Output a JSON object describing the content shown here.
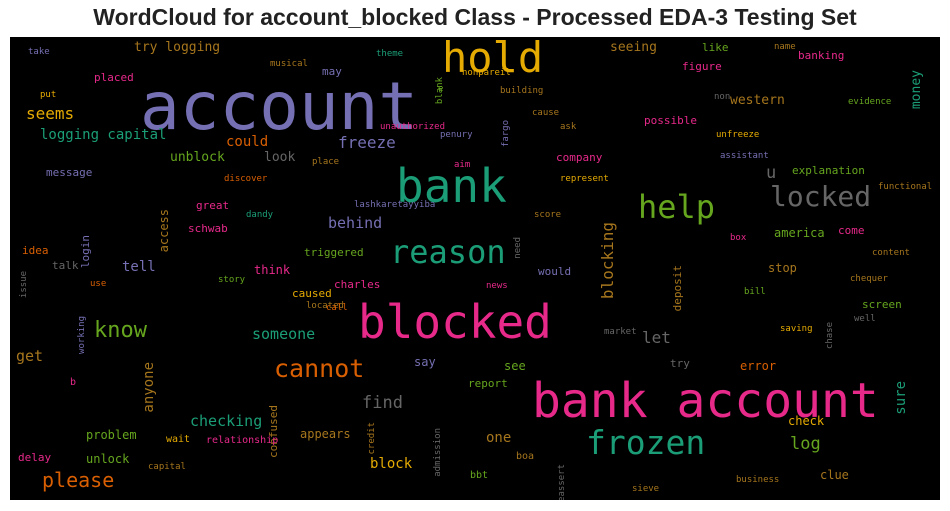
{
  "title": "WordCloud for account_blocked Class - Processed EDA-3 Testing Set",
  "palette": {
    "green": "#1b9e77",
    "orange": "#d95f02",
    "purple": "#7570b3",
    "pink": "#e7298a",
    "lime": "#66a61e",
    "gold": "#e6ab02",
    "brown": "#a6761d",
    "gray": "#666666"
  },
  "words": [
    {
      "text": "account",
      "color": "purple"
    },
    {
      "text": "bank account",
      "color": "pink"
    },
    {
      "text": "blocked",
      "color": "pink"
    },
    {
      "text": "bank",
      "color": "green"
    },
    {
      "text": "hold",
      "color": "gold"
    },
    {
      "text": "reason",
      "color": "green"
    },
    {
      "text": "frozen",
      "color": "green"
    },
    {
      "text": "help",
      "color": "lime"
    },
    {
      "text": "locked",
      "color": "gray"
    },
    {
      "text": "cannot",
      "color": "orange"
    },
    {
      "text": "know",
      "color": "lime"
    },
    {
      "text": "please",
      "color": "orange"
    },
    {
      "text": "freeze",
      "color": "purple"
    },
    {
      "text": "find",
      "color": "gray"
    },
    {
      "text": "checking",
      "color": "green"
    },
    {
      "text": "u",
      "color": "gray"
    },
    {
      "text": "blocking",
      "color": "brown"
    },
    {
      "text": "log",
      "color": "lime"
    },
    {
      "text": "let",
      "color": "gray"
    },
    {
      "text": "behind",
      "color": "purple"
    },
    {
      "text": "someone",
      "color": "green"
    },
    {
      "text": "tell",
      "color": "purple"
    },
    {
      "text": "block",
      "color": "gold"
    },
    {
      "text": "one",
      "color": "brown"
    },
    {
      "text": "anyone",
      "color": "brown"
    },
    {
      "text": "access",
      "color": "brown"
    },
    {
      "text": "seems",
      "color": "gold"
    },
    {
      "text": "logging capital",
      "color": "green"
    },
    {
      "text": "try logging",
      "color": "brown"
    },
    {
      "text": "seeing",
      "color": "brown"
    },
    {
      "text": "western",
      "color": "brown"
    },
    {
      "text": "money",
      "color": "green"
    },
    {
      "text": "could",
      "color": "orange"
    },
    {
      "text": "unblock",
      "color": "lime"
    },
    {
      "text": "look",
      "color": "gray"
    },
    {
      "text": "get",
      "color": "brown"
    },
    {
      "text": "think",
      "color": "pink"
    },
    {
      "text": "see",
      "color": "lime"
    },
    {
      "text": "error",
      "color": "orange"
    },
    {
      "text": "stop",
      "color": "brown"
    },
    {
      "text": "america",
      "color": "lime"
    },
    {
      "text": "sure",
      "color": "green"
    },
    {
      "text": "problem",
      "color": "lime"
    },
    {
      "text": "unlock",
      "color": "lime"
    },
    {
      "text": "appears",
      "color": "brown"
    },
    {
      "text": "check",
      "color": "gold"
    },
    {
      "text": "clue",
      "color": "brown"
    },
    {
      "text": "say",
      "color": "purple"
    },
    {
      "text": "deposit",
      "color": "brown"
    },
    {
      "text": "would",
      "color": "purple"
    },
    {
      "text": "explanation",
      "color": "lime"
    },
    {
      "text": "company",
      "color": "pink"
    },
    {
      "text": "charles",
      "color": "pink"
    },
    {
      "text": "caused",
      "color": "gold"
    },
    {
      "text": "triggered",
      "color": "lime"
    },
    {
      "text": "schwab",
      "color": "pink"
    },
    {
      "text": "great",
      "color": "pink"
    },
    {
      "text": "screen",
      "color": "lime"
    },
    {
      "text": "come",
      "color": "pink"
    },
    {
      "text": "message",
      "color": "purple"
    },
    {
      "text": "login",
      "color": "purple"
    },
    {
      "text": "idea",
      "color": "orange"
    },
    {
      "text": "talk",
      "color": "gray"
    },
    {
      "text": "like",
      "color": "lime"
    },
    {
      "text": "figure",
      "color": "pink"
    },
    {
      "text": "banking",
      "color": "pink"
    },
    {
      "text": "placed",
      "color": "pink"
    },
    {
      "text": "may",
      "color": "purple"
    },
    {
      "text": "possible",
      "color": "pink"
    },
    {
      "text": "report",
      "color": "lime"
    },
    {
      "text": "try",
      "color": "gray"
    },
    {
      "text": "confused",
      "color": "brown"
    },
    {
      "text": "delay",
      "color": "pink"
    },
    {
      "text": "bbt",
      "color": "lime"
    },
    {
      "text": "boa",
      "color": "brown"
    },
    {
      "text": "business",
      "color": "brown"
    },
    {
      "text": "sieve",
      "color": "brown"
    },
    {
      "text": "wait",
      "color": "gold"
    },
    {
      "text": "relationship",
      "color": "pink"
    },
    {
      "text": "capital",
      "color": "brown"
    },
    {
      "text": "credit",
      "color": "brown"
    },
    {
      "text": "admission",
      "color": "gray"
    },
    {
      "text": "reassert",
      "color": "gray"
    },
    {
      "text": "b",
      "color": "pink"
    },
    {
      "text": "working",
      "color": "purple"
    },
    {
      "text": "use",
      "color": "orange"
    },
    {
      "text": "issue",
      "color": "gray"
    },
    {
      "text": "story",
      "color": "lime"
    },
    {
      "text": "located",
      "color": "brown"
    },
    {
      "text": "call",
      "color": "orange"
    },
    {
      "text": "news",
      "color": "pink"
    },
    {
      "text": "market",
      "color": "gray"
    },
    {
      "text": "saving",
      "color": "gold"
    },
    {
      "text": "chase",
      "color": "gray"
    },
    {
      "text": "well",
      "color": "gray"
    },
    {
      "text": "bill",
      "color": "lime"
    },
    {
      "text": "chequer",
      "color": "brown"
    },
    {
      "text": "content",
      "color": "brown"
    },
    {
      "text": "box",
      "color": "pink"
    },
    {
      "text": "functional",
      "color": "brown"
    },
    {
      "text": "unfreeze",
      "color": "gold"
    },
    {
      "text": "assistant",
      "color": "purple"
    },
    {
      "text": "evidence",
      "color": "lime"
    },
    {
      "text": "non",
      "color": "gray"
    },
    {
      "text": "name",
      "color": "brown"
    },
    {
      "text": "theme",
      "color": "green"
    },
    {
      "text": "take",
      "color": "purple"
    },
    {
      "text": "musical",
      "color": "brown"
    },
    {
      "text": "nonpareil",
      "color": "gold"
    },
    {
      "text": "put",
      "color": "gold"
    },
    {
      "text": "building",
      "color": "brown"
    },
    {
      "text": "blank",
      "color": "lime"
    },
    {
      "text": "e",
      "color": "lime"
    },
    {
      "text": "cause",
      "color": "brown"
    },
    {
      "text": "ask",
      "color": "brown"
    },
    {
      "text": "unauthorized",
      "color": "pink"
    },
    {
      "text": "fargo",
      "color": "purple"
    },
    {
      "text": "penury",
      "color": "purple"
    },
    {
      "text": "aim",
      "color": "pink"
    },
    {
      "text": "place",
      "color": "brown"
    },
    {
      "text": "represent",
      "color": "gold"
    },
    {
      "text": "discover",
      "color": "orange"
    },
    {
      "text": "dandy",
      "color": "green"
    },
    {
      "text": "lashkaretayyiba",
      "color": "purple"
    },
    {
      "text": "need",
      "color": "gray"
    },
    {
      "text": "score",
      "color": "brown"
    }
  ]
}
